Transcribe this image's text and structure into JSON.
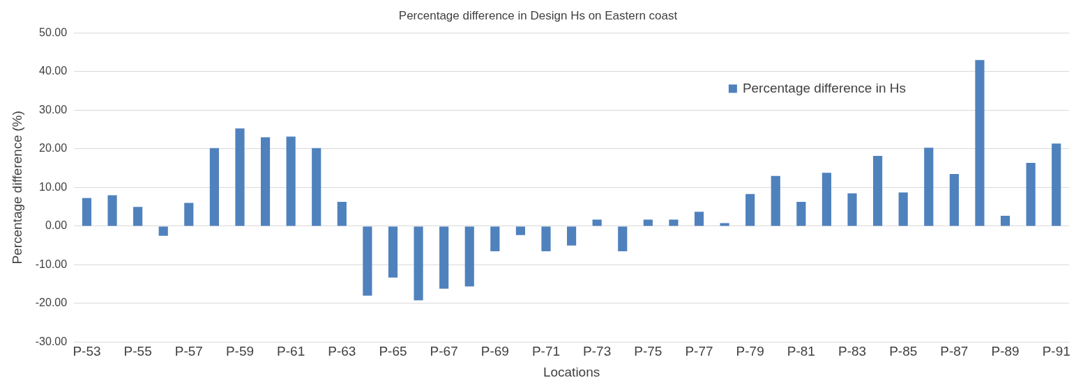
{
  "chart_data": {
    "type": "bar",
    "title": "Percentage difference in Design Hs on Eastern coast",
    "xlabel": "Locations",
    "ylabel": "Percentage difference (%)",
    "categories": [
      "P-53",
      null,
      "P-55",
      null,
      "P-57",
      null,
      "P-59",
      null,
      "P-61",
      null,
      "P-63",
      null,
      "P-65",
      null,
      "P-67",
      null,
      "P-69",
      null,
      "P-71",
      null,
      "P-73",
      null,
      "P-75",
      null,
      "P-77",
      null,
      "P-79",
      null,
      "P-81",
      null,
      "P-83",
      null,
      "P-85",
      null,
      "P-87",
      null,
      "P-89",
      null,
      "P-91"
    ],
    "series": [
      {
        "name": "Percentage difference in Hs",
        "color": "#4f81bd",
        "values": [
          7.3,
          8.0,
          5.0,
          -2.5,
          6.0,
          20.2,
          25.3,
          23.0,
          23.2,
          20.2,
          6.3,
          -18.0,
          -13.3,
          -19.2,
          -16.2,
          -15.6,
          -6.5,
          -2.3,
          -6.5,
          -5.0,
          1.7,
          -6.5,
          1.7,
          1.7,
          3.7,
          0.8,
          8.3,
          13.0,
          6.3,
          13.8,
          8.5,
          18.2,
          8.7,
          20.3,
          13.5,
          43.0,
          2.7,
          16.4,
          21.4
        ]
      }
    ],
    "ylim": [
      -30,
      50
    ],
    "yticks": [
      {
        "value": -30,
        "label": "-30.00"
      },
      {
        "value": -20,
        "label": "-20.00"
      },
      {
        "value": -10,
        "label": "-10.00"
      },
      {
        "value": 0,
        "label": "0.00"
      },
      {
        "value": 10,
        "label": "10.00"
      },
      {
        "value": 20,
        "label": "20.00"
      },
      {
        "value": 30,
        "label": "30.00"
      },
      {
        "value": 40,
        "label": "40.00"
      },
      {
        "value": 50,
        "label": "50.00"
      }
    ],
    "grid": "y",
    "legend": "top right"
  }
}
